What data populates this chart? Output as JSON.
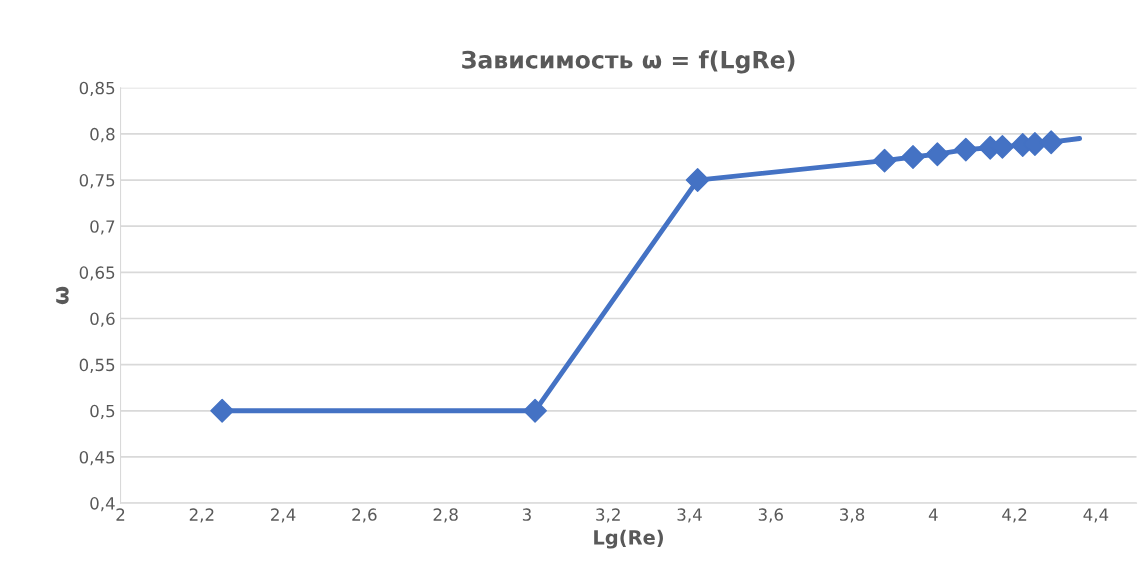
{
  "chart_data": {
    "type": "line",
    "title": "Зависимость ω = f(LgRe)",
    "xlabel": "Lg(Re)",
    "ylabel": "ω",
    "series": [
      {
        "color": "#4472c4",
        "marker": "none",
        "line_style": "solid",
        "x": [
          2.25,
          3.02,
          3.42,
          3.88,
          3.95,
          4.01,
          4.08,
          4.14,
          4.17,
          4.22,
          4.25,
          4.29,
          4.36
        ],
        "values": [
          0.5,
          0.5,
          0.75,
          0.771,
          0.775,
          0.778,
          0.783,
          0.785,
          0.786,
          0.788,
          0.789,
          0.791,
          0.795
        ]
      },
      {
        "type": "scatter",
        "color": "#4472c4",
        "marker": "diamond",
        "x": [
          2.25,
          3.02,
          3.42,
          3.88,
          3.95,
          4.01,
          4.08,
          4.14,
          4.17,
          4.22,
          4.25,
          4.29
        ],
        "values": [
          0.5,
          0.5,
          0.75,
          0.771,
          0.775,
          0.778,
          0.783,
          0.785,
          0.786,
          0.788,
          0.789,
          0.791
        ]
      }
    ],
    "xlim": [
      2,
      4.5
    ],
    "xticks": [
      {
        "value": 2,
        "label": "2"
      },
      {
        "value": 2.2,
        "label": "2,2"
      },
      {
        "value": 2.4,
        "label": "2,4"
      },
      {
        "value": 2.6,
        "label": "2,6"
      },
      {
        "value": 2.8,
        "label": "2,8"
      },
      {
        "value": 3,
        "label": "3"
      },
      {
        "value": 3.2,
        "label": "3,2"
      },
      {
        "value": 3.4,
        "label": "3,4"
      },
      {
        "value": 3.6,
        "label": "3,6"
      },
      {
        "value": 3.8,
        "label": "3,8"
      },
      {
        "value": 4,
        "label": "4"
      },
      {
        "value": 4.2,
        "label": "4,2"
      },
      {
        "value": 4.4,
        "label": "4,4"
      }
    ],
    "ylim": [
      0.4,
      0.85
    ],
    "yticks": [
      {
        "value": 0.4,
        "label": "0,4"
      },
      {
        "value": 0.45,
        "label": "0,45"
      },
      {
        "value": 0.5,
        "label": "0,5"
      },
      {
        "value": 0.55,
        "label": "0,55"
      },
      {
        "value": 0.6,
        "label": "0,6"
      },
      {
        "value": 0.65,
        "label": "0,65"
      },
      {
        "value": 0.7,
        "label": "0,7"
      },
      {
        "value": 0.75,
        "label": "0,75"
      },
      {
        "value": 0.8,
        "label": "0,8"
      },
      {
        "value": 0.85,
        "label": "0,85"
      }
    ],
    "grid": "y"
  }
}
